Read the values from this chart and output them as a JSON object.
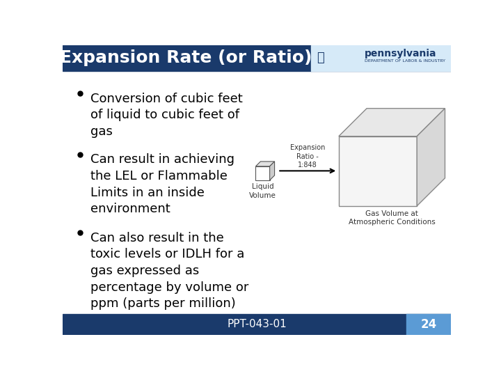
{
  "title": "Expansion Rate (or Ratio)",
  "bg_color": "#ffffff",
  "header_bg": "#1a3a6b",
  "header_text_color": "#ffffff",
  "header_font_size": 18,
  "footer_bg": "#1a3a6b",
  "footer_text": "PPT-043-01",
  "footer_page": "24",
  "footer_page_bg": "#5b9bd5",
  "bullet_points": [
    "Conversion of cubic feet\nof liquid to cubic feet of\ngas",
    "Can result in achieving\nthe LEL or Flammable\nLimits in an inside\nenvironment",
    "Can also result in the\ntoxic levels or IDLH for a\ngas expressed as\npercentage by volume or\nppm (parts per million)"
  ],
  "bullet_font_size": 13,
  "bullet_color": "#000000",
  "diagram_arrow_label": "Expansion\nRatio -\n1:848",
  "diagram_liquid_label": "Liquid\nVolume",
  "diagram_gas_label": "Gas Volume at\nAtmospheric Conditions",
  "small_cube_color": "#ffffff",
  "small_cube_edge": "#555555",
  "large_cube_color": "#f5f5f5",
  "large_cube_edge": "#888888",
  "large_cube_top_color": "#e8e8e8",
  "large_cube_right_color": "#d8d8d8",
  "arrow_color": "#000000",
  "logo_bg": "#d6eaf8",
  "logo_text": "pennsylvania",
  "logo_sub": "DEPARTMENT OF LABOR & INDUSTRY",
  "logo_color": "#1a3a6b"
}
